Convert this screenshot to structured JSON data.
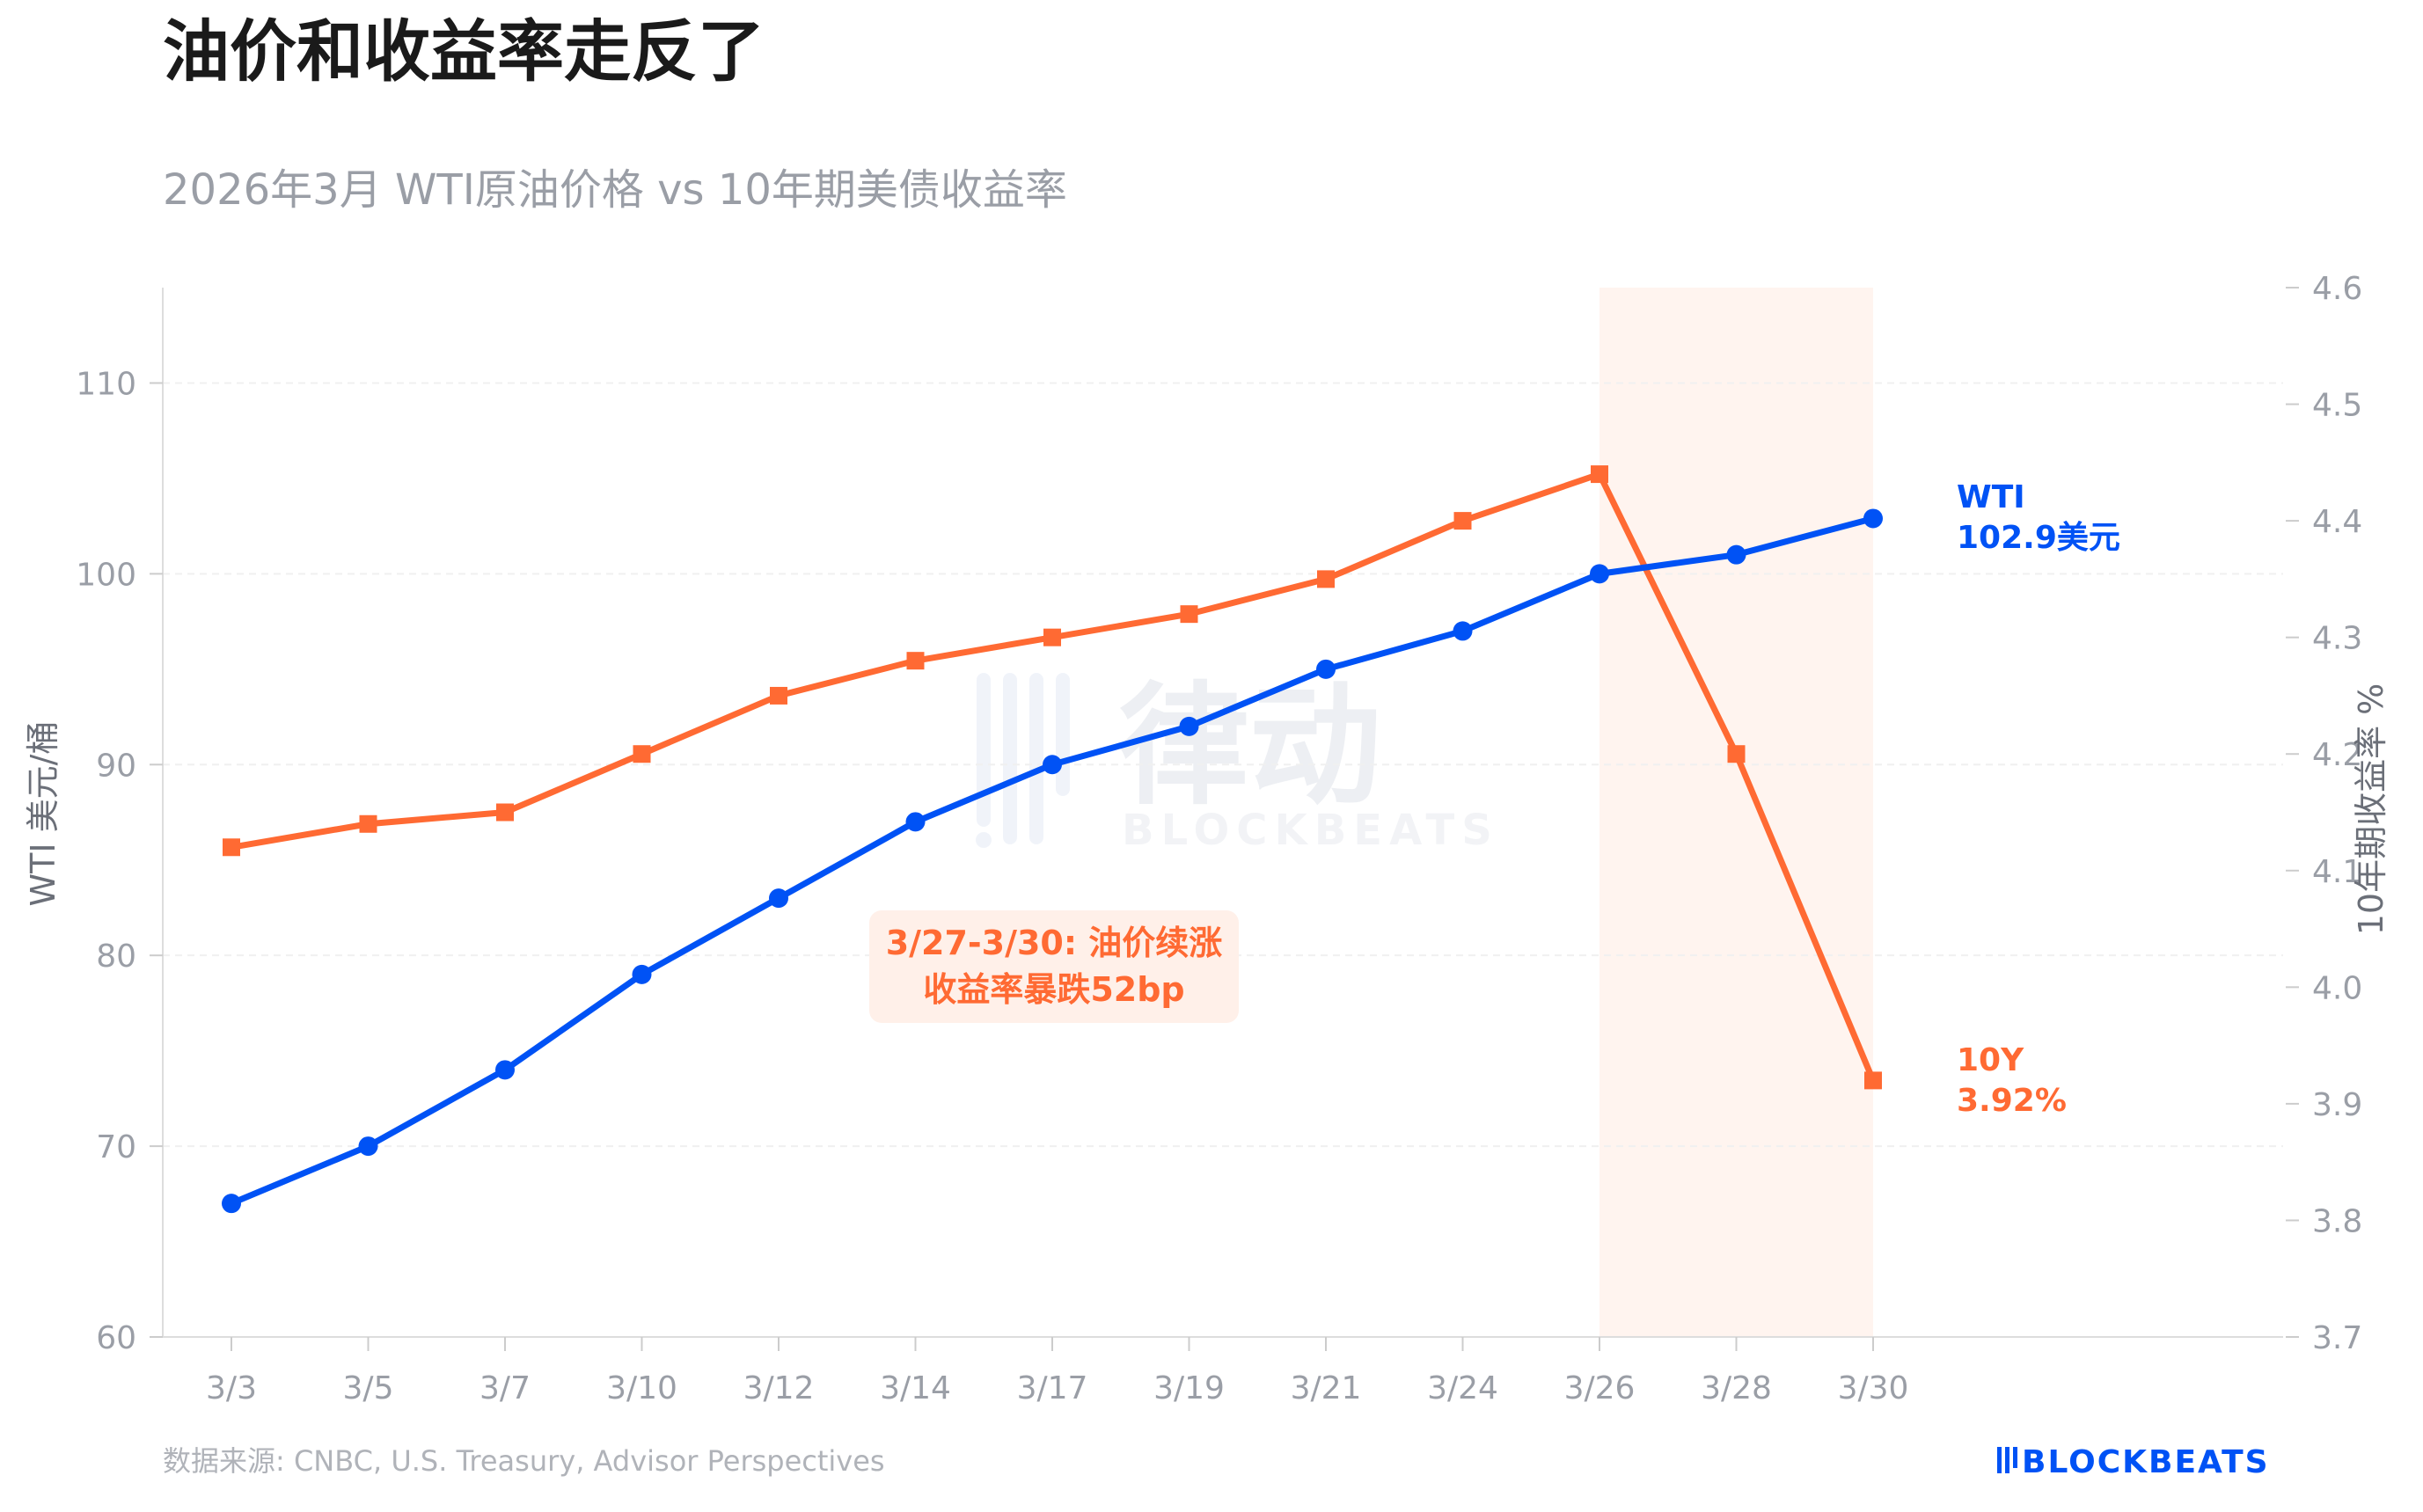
{
  "title": "油价和收益率走反了",
  "subtitle": "2026年3月 WTI原油价格 vs 10年期美债收益率",
  "source": "数据来源: CNBC, U.S. Treasury, Advisor Perspectives",
  "logo": "BLOCKBEATS",
  "watermark": {
    "cn": "律动",
    "en": "BLOCKBEATS"
  },
  "colors": {
    "wti": "#0052f5",
    "tenY": "#ff6a33",
    "highlight": "#fff4ef",
    "annotation_bg": "#fff0e9",
    "grid": "#eeeeee",
    "tick": "#9a9ea6"
  },
  "chart_data": {
    "type": "line",
    "title": "油价和收益率走反了",
    "subtitle": "2026年3月 WTI原油价格 vs 10年期美债收益率",
    "categories": [
      "3/3",
      "3/5",
      "3/7",
      "3/10",
      "3/12",
      "3/14",
      "3/17",
      "3/19",
      "3/21",
      "3/24",
      "3/26",
      "3/28",
      "3/30"
    ],
    "ylabel": "WTI 美元/桶",
    "y2label": "10年期收益率 %",
    "ylim": [
      60,
      115
    ],
    "y2lim": [
      3.7,
      4.6
    ],
    "yticks": [
      60,
      70,
      80,
      90,
      100,
      110
    ],
    "y2ticks": [
      3.7,
      3.8,
      3.9,
      4.0,
      4.1,
      4.2,
      4.3,
      4.4,
      4.5,
      4.6
    ],
    "grid": true,
    "series": [
      {
        "name": "WTI",
        "axis": "left",
        "marker": "circle",
        "color": "#0052f5",
        "values": [
          67,
          70,
          74,
          79,
          83,
          87,
          90,
          92,
          95,
          97,
          100,
          101,
          102.9
        ],
        "end_label": [
          "WTI",
          "102.9美元"
        ]
      },
      {
        "name": "10Y",
        "axis": "right",
        "marker": "square",
        "color": "#ff6a33",
        "values": [
          4.12,
          4.14,
          4.15,
          4.2,
          4.25,
          4.28,
          4.3,
          4.32,
          4.35,
          4.4,
          4.44,
          4.2,
          3.92
        ],
        "end_label": [
          "10Y",
          "3.92%"
        ]
      }
    ],
    "highlight_range": [
      "3/26",
      "3/30"
    ],
    "annotation": [
      "3/27-3/30: 油价续涨",
      "收益率暴跌52bp"
    ]
  }
}
